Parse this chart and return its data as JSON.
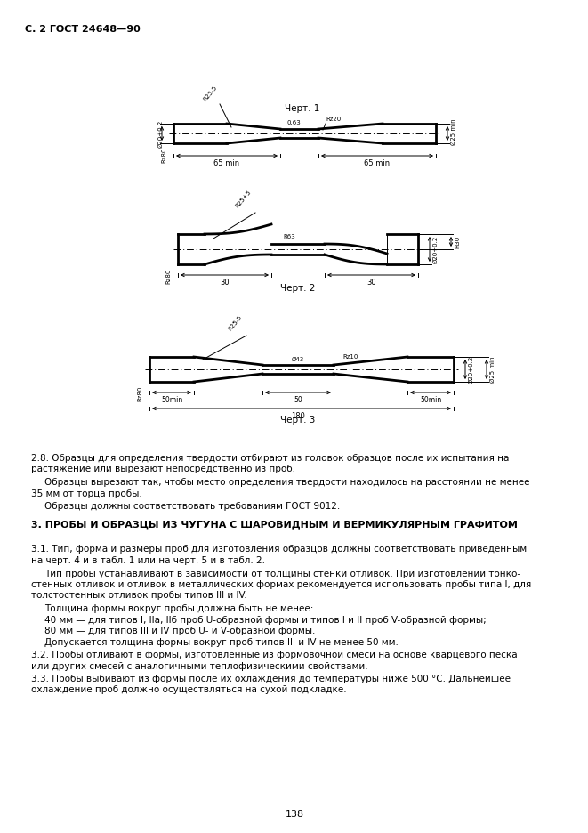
{
  "page_header": "С. 2 ГОСТ 24648—90",
  "page_number": "138",
  "section_heading": "3. ПРОБЫ И ОБРАЗЦЫ ИЗ ЧУГУНА С ШАРОВИДНЫМ И ВЕРМИКУЛЯРНЫМ ГРАФИТОМ",
  "paragraph_28_indent": "2.8. Образцы для определения твердости отбирают из головок образцов после их испытания на растяжение или вырезают непосредственно из проб.",
  "paragraph_28b_indent": "Образцы вырезают так, чтобы место определения твердости находилось на расстоянии не менее 35 мм от торца пробы.",
  "paragraph_28c_indent": "Образцы должны соответствовать требованиям ГОСТ 9012.",
  "paragraph_31_indent": "3.1. Тип, форма и размеры проб для изготовления образцов должны соответствовать приведенным на черт. 4 и в табл. 1 или на черт. 5 и в табл. 2.",
  "paragraph_31b_indent": "Тип пробы устанавливают в зависимости от толщины стенки отливок. При изготовлении тонко-стенных отливок и отливок в металлических формах рекомендуется использовать пробы типа I, для толстостенных отливок пробы типов III и IV.",
  "paragraph_31c": "Толщина формы вокруг пробы должна быть не менее:",
  "paragraph_31d": "40 мм — для типов I, IIа, IIб проб U-образной формы и типов I и II проб V-образной формы;",
  "paragraph_31e": "80 мм — для типов III и IV проб U- и V-образной формы.",
  "paragraph_31f": "Допускается толщина формы вокруг проб типов III и IV не менее 50 мм.",
  "paragraph_32_indent": "3.2. Пробы отливают в формы, изготовленные из формовочной смеси на основе кварцевого песка или других смесей с аналогичными теплофизическими свойствами.",
  "paragraph_33_indent": "3.3. Пробы выбивают из формы после их охлаждения до температуры ниже 500 °С. Дальнейшее охлаждение проб должно осуществляться на сухой подкладке.",
  "bg_color": "#ffffff",
  "line_color": "#000000",
  "fig_width": 6.61,
  "fig_height": 9.36
}
